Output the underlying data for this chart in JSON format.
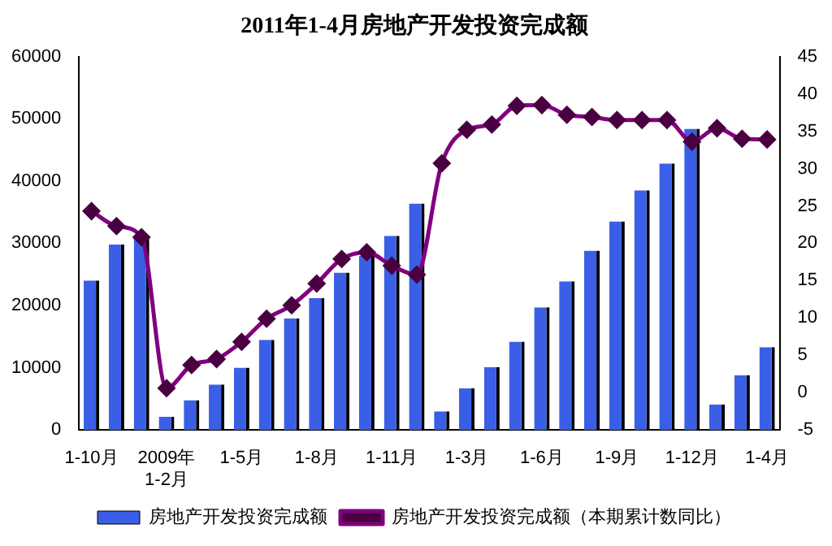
{
  "chart_data": {
    "type": "bar",
    "title": "2011年1-4月房地产开发投资完成额",
    "categories": [
      "1-10月",
      null,
      null,
      "2009年\n1-2月",
      null,
      null,
      "1-5月",
      null,
      null,
      "1-8月",
      null,
      null,
      "1-11月",
      null,
      null,
      "1-3月",
      null,
      null,
      "1-6月",
      null,
      null,
      "1-9月",
      null,
      null,
      "1-12月",
      null,
      null,
      "1-4月"
    ],
    "series": [
      {
        "name": "房地产开发投资完成额",
        "color": "#3a5fe6",
        "values": [
          24000,
          29800,
          30800,
          2100,
          4800,
          7300,
          10000,
          14500,
          17900,
          21200,
          25300,
          28000,
          31200,
          36400,
          3000,
          6700,
          10100,
          14200,
          19700,
          23900,
          28800,
          33500,
          38500,
          42800,
          48400,
          4100,
          8800,
          13300
        ]
      },
      {
        "name": "房地产开发投资完成额（本期累计数同比）",
        "type": "line",
        "axis": "y2",
        "color": "#800080",
        "values": [
          24.3,
          22.3,
          20.8,
          0.6,
          3.7,
          4.5,
          6.8,
          9.9,
          11.7,
          14.6,
          17.9,
          18.8,
          17.0,
          15.8,
          30.7,
          35.2,
          35.9,
          38.4,
          38.5,
          37.2,
          36.9,
          36.5,
          36.5,
          36.5,
          33.6,
          35.4,
          34.0,
          33.9
        ]
      }
    ],
    "ylim": [
      0,
      60000
    ],
    "yticks": [
      0,
      10000,
      20000,
      30000,
      40000,
      50000,
      60000
    ],
    "y2lim": [
      -5,
      45
    ],
    "y2ticks": [
      -5,
      0,
      5,
      10,
      15,
      20,
      25,
      30,
      35,
      40,
      45
    ],
    "marker": "diamond",
    "grid": false,
    "legend": "bottom"
  }
}
